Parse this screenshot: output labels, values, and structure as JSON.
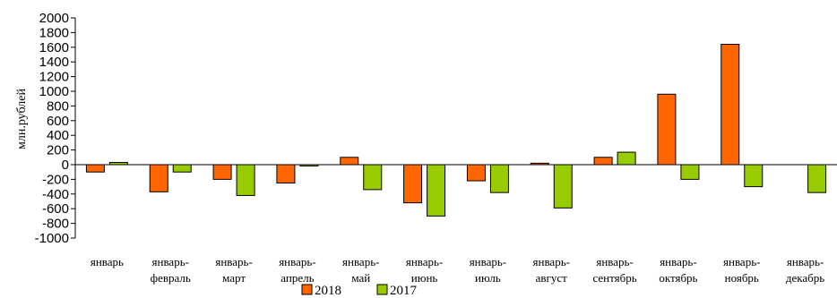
{
  "chart_data": {
    "type": "bar",
    "ylabel": "млн.рублей",
    "xlabel": "",
    "ylim": [
      -1000,
      2000
    ],
    "yticks": [
      -1000,
      -800,
      -600,
      -400,
      -200,
      0,
      200,
      400,
      600,
      800,
      1000,
      1200,
      1400,
      1600,
      1800,
      2000
    ],
    "categories": [
      [
        "январь"
      ],
      [
        "январь-",
        "февраль"
      ],
      [
        "январь-",
        "март"
      ],
      [
        "январь-",
        "апрель"
      ],
      [
        "январь-",
        "май"
      ],
      [
        "январь-",
        "июнь"
      ],
      [
        "январь-",
        "июль"
      ],
      [
        "январь-",
        "август"
      ],
      [
        "январь-",
        "сентябрь"
      ],
      [
        "январь-",
        "октябрь"
      ],
      [
        "январь-",
        "ноябрь"
      ],
      [
        "январь-",
        "декабрь"
      ]
    ],
    "series": [
      {
        "name": "2018",
        "color": "#ff6600",
        "values": [
          -100,
          -370,
          -200,
          -250,
          100,
          -520,
          -220,
          20,
          100,
          960,
          1640,
          null
        ]
      },
      {
        "name": "2017",
        "color": "#99cc00",
        "values": [
          30,
          -100,
          -420,
          0,
          -340,
          -700,
          -380,
          -590,
          170,
          -200,
          -300,
          -380
        ]
      }
    ],
    "legend_position": "bottom",
    "grid": false
  }
}
